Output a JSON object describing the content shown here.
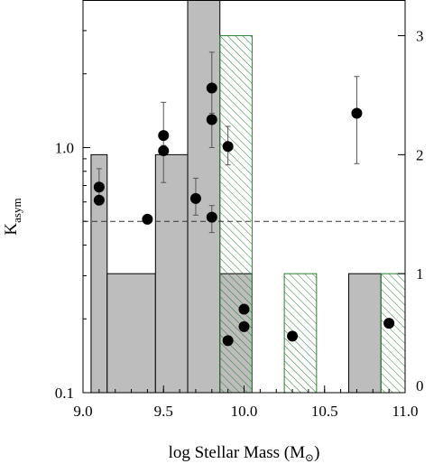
{
  "chart_data": {
    "type": "histogram+scatter",
    "xlabel": "log Stellar Mass (M",
    "xlabel_symbol": "⊙",
    "xlabel_close": ")",
    "ylabel": "K",
    "ylabel_sub": "asym",
    "xlim": [
      9.0,
      11.0
    ],
    "ylim_left": [
      0.1,
      4.0
    ],
    "yscale_left": "log",
    "ylim_right": [
      0,
      3.3
    ],
    "x_ticks": [
      {
        "value": 9.0,
        "label": "9.0"
      },
      {
        "value": 9.5,
        "label": "9.5"
      },
      {
        "value": 10.0,
        "label": "10.0"
      },
      {
        "value": 10.5,
        "label": "10.5"
      },
      {
        "value": 11.0,
        "label": "11.0"
      }
    ],
    "y_ticks_left": [
      {
        "value": 0.1,
        "label": "0.1"
      },
      {
        "value": 1.0,
        "label": "1.0"
      }
    ],
    "y_ticks_right": [
      {
        "value": 0,
        "label": "0"
      },
      {
        "value": 1,
        "label": "1"
      },
      {
        "value": 2,
        "label": "2"
      },
      {
        "value": 3,
        "label": "3"
      }
    ],
    "threshold": 0.5,
    "hist_gray": [
      {
        "x0": 9.05,
        "x1": 9.15,
        "count": 2
      },
      {
        "x0": 9.15,
        "x1": 9.45,
        "count": 1
      },
      {
        "x0": 9.45,
        "x1": 9.65,
        "count": 2
      },
      {
        "x0": 9.65,
        "x1": 9.85,
        "count": 4
      },
      {
        "x0": 9.85,
        "x1": 10.05,
        "count": 1
      },
      {
        "x0": 10.65,
        "x1": 10.85,
        "count": 1
      }
    ],
    "hist_hatched": [
      {
        "x0": 9.85,
        "x1": 10.05,
        "count": 3
      },
      {
        "x0": 10.25,
        "x1": 10.45,
        "count": 1
      },
      {
        "x0": 10.85,
        "x1": 11.0,
        "count": 1
      }
    ],
    "points": [
      {
        "x": 9.1,
        "y": 0.69,
        "ylo": 0.61,
        "yhi": 0.82
      },
      {
        "x": 9.1,
        "y": 0.61
      },
      {
        "x": 9.4,
        "y": 0.51
      },
      {
        "x": 9.5,
        "y": 1.12,
        "ylo": 0.99,
        "yhi": 1.53
      },
      {
        "x": 9.5,
        "y": 0.97,
        "ylo": 0.72,
        "yhi": 1.02
      },
      {
        "x": 9.7,
        "y": 0.62,
        "ylo": 0.53,
        "yhi": 0.75
      },
      {
        "x": 9.8,
        "y": 1.75,
        "ylo": 1.35,
        "yhi": 2.45
      },
      {
        "x": 9.8,
        "y": 1.3,
        "ylo": 1.0,
        "yhi": 1.38
      },
      {
        "x": 9.8,
        "y": 0.52,
        "ylo": 0.45,
        "yhi": 0.58
      },
      {
        "x": 9.9,
        "y": 1.01,
        "ylo": 0.85,
        "yhi": 1.22
      },
      {
        "x": 9.9,
        "y": 0.163
      },
      {
        "x": 10.0,
        "y": 0.219
      },
      {
        "x": 10.0,
        "y": 0.186
      },
      {
        "x": 10.3,
        "y": 0.17
      },
      {
        "x": 10.7,
        "y": 1.38,
        "ylo": 0.86,
        "yhi": 1.95
      },
      {
        "x": 10.9,
        "y": 0.192
      }
    ]
  }
}
